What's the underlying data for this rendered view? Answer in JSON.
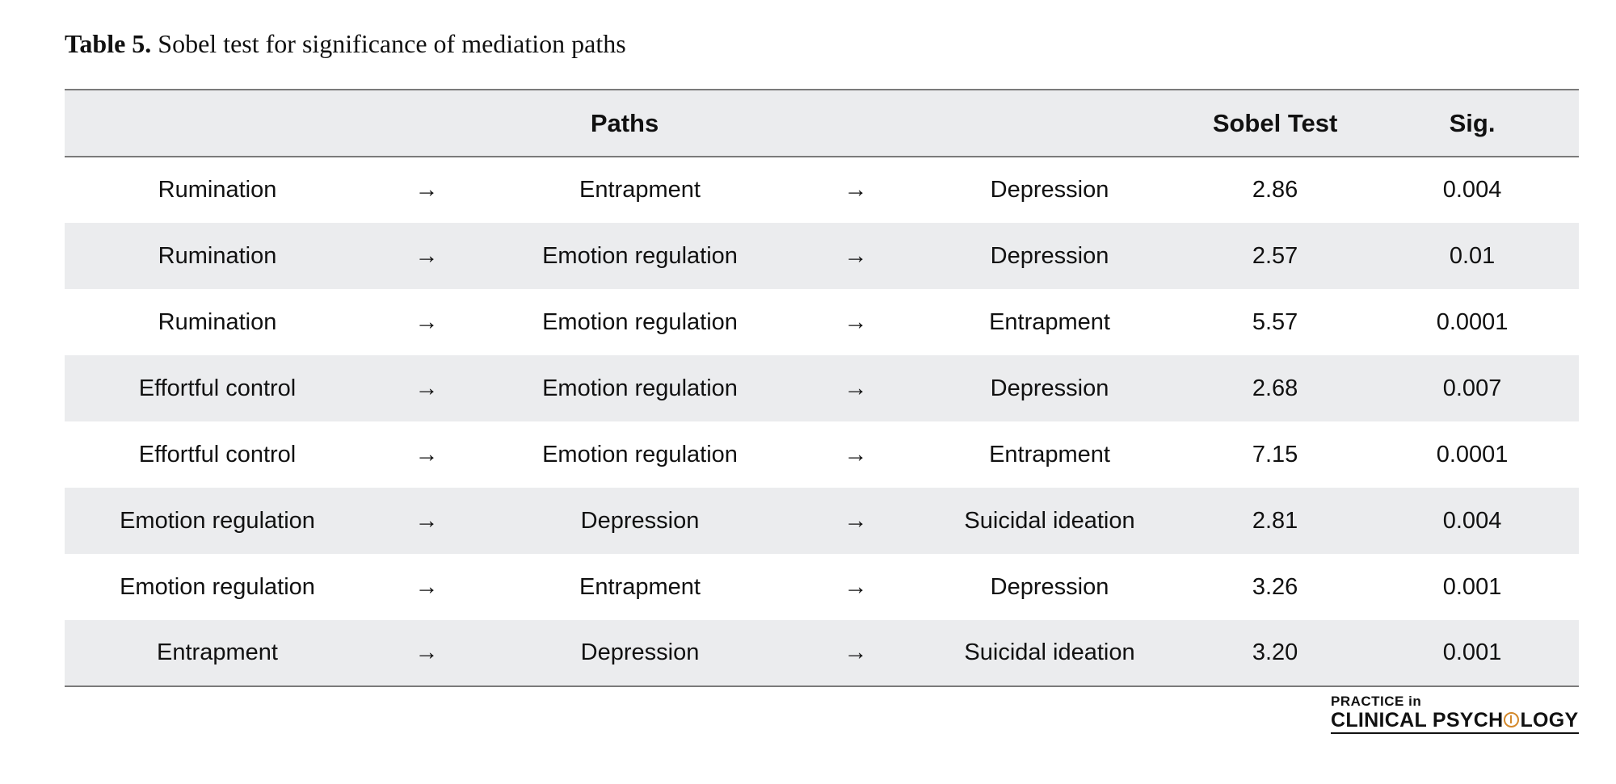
{
  "caption": {
    "label": "Table 5.",
    "text": "Sobel test for significance of mediation paths"
  },
  "headers": {
    "paths": "Paths",
    "sobel": "Sobel Test",
    "sig": "Sig."
  },
  "arrow_glyph": "→",
  "rows": [
    {
      "from": "Rumination",
      "via": "Entrapment",
      "to": "Depression",
      "sobel": "2.86",
      "sig": "0.004"
    },
    {
      "from": "Rumination",
      "via": "Emotion regulation",
      "to": "Depression",
      "sobel": "2.57",
      "sig": "0.01"
    },
    {
      "from": "Rumination",
      "via": "Emotion regulation",
      "to": "Entrapment",
      "sobel": "5.57",
      "sig": "0.0001"
    },
    {
      "from": "Effortful control",
      "via": "Emotion regulation",
      "to": "Depression",
      "sobel": "2.68",
      "sig": "0.007"
    },
    {
      "from": "Effortful control",
      "via": "Emotion regulation",
      "to": "Entrapment",
      "sobel": "7.15",
      "sig": "0.0001"
    },
    {
      "from": "Emotion regulation",
      "via": "Depression",
      "to": "Suicidal ideation",
      "sobel": "2.81",
      "sig": "0.004"
    },
    {
      "from": "Emotion regulation",
      "via": "Entrapment",
      "to": "Depression",
      "sobel": "3.26",
      "sig": "0.001"
    },
    {
      "from": "Entrapment",
      "via": "Depression",
      "to": "Suicidal ideation",
      "sobel": "3.20",
      "sig": "0.001"
    }
  ],
  "logo": {
    "line1": "PRACTICE in",
    "line2_a": "CLINICAL PSYCH",
    "line2_b": "LOGY"
  },
  "colors": {
    "shade": "#ebecee",
    "rule": "#7a7a7a",
    "logo_accent": "#d4892c"
  }
}
